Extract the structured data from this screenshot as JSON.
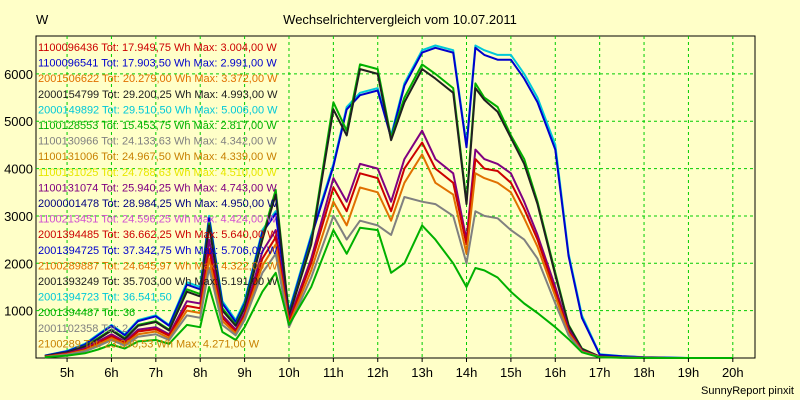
{
  "chart_data": {
    "type": "line",
    "title": "Wechselrichtervergleich vom 10.07.2011",
    "ylabel": "W",
    "xlabel": "",
    "ylim": [
      0,
      6800
    ],
    "xlim": [
      4.3,
      20.5
    ],
    "yticks": [
      1000,
      2000,
      3000,
      4000,
      5000,
      6000
    ],
    "xticks": [
      5,
      6,
      7,
      8,
      9,
      10,
      11,
      12,
      13,
      14,
      15,
      16,
      17,
      18,
      19,
      20
    ],
    "xtick_labels": [
      "5h",
      "6h",
      "7h",
      "8h",
      "9h",
      "10h",
      "11h",
      "12h",
      "13h",
      "14h",
      "15h",
      "16h",
      "17h",
      "18h",
      "19h",
      "20h"
    ],
    "grid": true,
    "legend_placement": "top-left",
    "footer": "SunnyReport pinxit",
    "legend_entries": [
      {
        "text": "1100096436 Tot: 17.949,75 Wh Max: 3.004,00 W",
        "color": "#cc0000"
      },
      {
        "text": "1100096541 Tot: 17.903,50 Wh Max: 2.991,00 W",
        "color": "#0000cc"
      },
      {
        "text": "2001506622 Tot: 20.279,00 Wh Max: 3.372,00 W",
        "color": "#e07000"
      },
      {
        "text": "2000154799 Tot: 29.200,25 Wh Max: 4.993,00 W",
        "color": "#202020"
      },
      {
        "text": "2000149892 Tot: 29.510,50 Wh Max: 5.006,00 W",
        "color": "#00c8d8"
      },
      {
        "text": "1100128553 Tot: 15.453,75 Wh Max: 2.817,00 W",
        "color": "#00b000"
      },
      {
        "text": "1100130966 Tot: 24.133,63 Wh Max: 4.342,00 W",
        "color": "#808080"
      },
      {
        "text": "1100131006 Tot: 24.967,50 Wh Max: 4.339,00 W",
        "color": "#c88000"
      },
      {
        "text": "1100131025 Tot: 24.788,63 Wh Max: 4.510,00 W",
        "color": "#e8e800"
      },
      {
        "text": "1100131074 Tot: 25.940,25 Wh Max: 4.743,00 W",
        "color": "#800080"
      },
      {
        "text": "2000001478 Tot: 28.984,25 Wh Max: 4.950,00 W",
        "color": "#000080"
      },
      {
        "text": "1100213451 Tot: 24.596,25 Wh Max: 4.424,00 W",
        "color": "#d050d0"
      },
      {
        "text": "2001394485 Tot: 36.662,25 Wh Max: 5.640,00 W",
        "color": "#cc0000"
      },
      {
        "text": "2001394725 Tot: 37.342,75 Wh Max: 5.706,00 W",
        "color": "#0000cc"
      },
      {
        "text": "2100289887 Tot: 24.645,97 Wh Max: 4.322,00 W",
        "color": "#e07000"
      },
      {
        "text": "2001393249 Tot: 35.703,00 Wh Max: 5.191,00 W",
        "color": "#202020"
      },
      {
        "text": "2001394723 Tot: 36.541,50",
        "color": "#00c8d8"
      },
      {
        "text": "2001394487 Tot: 36",
        "color": "#00b000"
      },
      {
        "text": "2001102358 Tot: 2",
        "color": "#808080"
      },
      {
        "text": "2100289 Tot: 23.390,53 Wh Max: 4.271,00 W",
        "color": "#c88000"
      }
    ],
    "series": [
      {
        "color": "#00c8d8",
        "x": [
          4.5,
          5,
          5.4,
          5.7,
          6,
          6.3,
          6.6,
          7,
          7.3,
          7.7,
          8,
          8.2,
          8.5,
          8.8,
          9,
          9.4,
          9.7,
          10,
          10.5,
          11,
          11.3,
          11.6,
          12,
          12.3,
          12.6,
          13,
          13.3,
          13.7,
          14,
          14.2,
          14.4,
          14.7,
          15,
          15.3,
          15.6,
          16,
          16.3,
          16.6,
          17,
          17.5,
          18,
          18.5,
          19,
          19.5,
          20
        ],
        "values": [
          50,
          150,
          300,
          500,
          700,
          500,
          800,
          900,
          700,
          1600,
          1500,
          3000,
          1200,
          800,
          1200,
          2700,
          3100,
          1000,
          2600,
          4100,
          5300,
          5600,
          5700,
          4700,
          5800,
          6500,
          6600,
          6500,
          4500,
          6600,
          6500,
          6400,
          6400,
          6000,
          5500,
          4500,
          2200,
          900,
          80,
          40,
          20,
          10,
          0,
          0,
          0
        ]
      },
      {
        "color": "#0000cc",
        "x": [
          4.5,
          5,
          5.4,
          5.7,
          6,
          6.3,
          6.6,
          7,
          7.3,
          7.7,
          8,
          8.2,
          8.5,
          8.8,
          9,
          9.4,
          9.7,
          10,
          10.5,
          11,
          11.3,
          11.6,
          12,
          12.3,
          12.6,
          13,
          13.3,
          13.7,
          14,
          14.2,
          14.4,
          14.7,
          15,
          15.3,
          15.6,
          16,
          16.3,
          16.6,
          17,
          17.5,
          18,
          18.5,
          19,
          19.5,
          20
        ],
        "values": [
          50,
          140,
          280,
          480,
          680,
          480,
          780,
          880,
          680,
          1550,
          1450,
          2950,
          1150,
          760,
          1150,
          2650,
          3050,
          950,
          2550,
          4050,
          5250,
          5550,
          5650,
          4650,
          5750,
          6450,
          6550,
          6450,
          4450,
          6550,
          6400,
          6300,
          6300,
          5900,
          5400,
          4400,
          2150,
          850,
          70,
          35,
          15,
          8,
          0,
          0,
          0
        ]
      },
      {
        "color": "#00b000",
        "x": [
          4.5,
          5,
          5.4,
          5.7,
          6,
          6.3,
          6.6,
          7,
          7.3,
          7.7,
          8,
          8.2,
          8.5,
          8.8,
          9,
          9.4,
          9.7,
          10,
          10.5,
          11,
          11.3,
          11.6,
          12,
          12.3,
          12.6,
          13,
          13.3,
          13.7,
          14,
          14.2,
          14.4,
          14.7,
          15,
          15.3,
          15.6,
          16,
          16.3,
          16.6,
          17,
          17.5,
          18,
          18.5,
          19,
          19.5,
          20
        ],
        "values": [
          40,
          120,
          250,
          420,
          600,
          420,
          700,
          780,
          600,
          1450,
          1350,
          2850,
          1050,
          700,
          1100,
          2550,
          3550,
          900,
          2450,
          5400,
          4800,
          6200,
          6100,
          4650,
          5500,
          6200,
          6000,
          5700,
          3300,
          5800,
          5500,
          5300,
          4700,
          4200,
          3300,
          1800,
          700,
          200,
          30,
          10,
          5,
          0,
          0,
          0,
          0
        ]
      },
      {
        "color": "#202020",
        "x": [
          4.5,
          5,
          5.4,
          5.7,
          6,
          6.3,
          6.6,
          7,
          7.3,
          7.7,
          8,
          8.2,
          8.5,
          8.8,
          9,
          9.4,
          9.7,
          10,
          10.5,
          11,
          11.3,
          11.6,
          12,
          12.3,
          12.6,
          13,
          13.3,
          13.7,
          14,
          14.2,
          14.4,
          14.7,
          15,
          15.3,
          15.6,
          16,
          16.3,
          16.6,
          17,
          17.5,
          18,
          18.5,
          19,
          19.5,
          20
        ],
        "values": [
          40,
          120,
          240,
          400,
          580,
          400,
          680,
          760,
          580,
          1400,
          1300,
          2800,
          1000,
          680,
          1050,
          2500,
          3450,
          880,
          2400,
          5250,
          4700,
          6100,
          6000,
          4600,
          5400,
          6100,
          5900,
          5600,
          3250,
          5700,
          5450,
          5200,
          4650,
          4100,
          3250,
          1750,
          680,
          190,
          30,
          10,
          5,
          0,
          0,
          0,
          0
        ]
      },
      {
        "color": "#800080",
        "x": [
          4.5,
          5,
          5.4,
          5.7,
          6,
          6.3,
          6.6,
          7,
          7.3,
          7.7,
          8,
          8.2,
          8.5,
          8.8,
          9,
          9.4,
          9.7,
          10,
          10.5,
          11,
          11.3,
          11.6,
          12,
          12.3,
          12.6,
          13,
          13.3,
          13.7,
          14,
          14.2,
          14.4,
          14.7,
          15,
          15.3,
          15.6,
          16,
          16.3,
          16.6,
          17,
          17.5,
          18,
          18.5,
          19,
          19.5,
          20
        ],
        "values": [
          30,
          100,
          200,
          350,
          500,
          350,
          600,
          650,
          500,
          1200,
          1150,
          2500,
          900,
          600,
          950,
          2250,
          2700,
          800,
          2100,
          3800,
          3300,
          4100,
          4000,
          3300,
          4200,
          4800,
          4200,
          3900,
          2500,
          4400,
          4200,
          4100,
          3900,
          3300,
          2600,
          1500,
          600,
          160,
          25,
          10,
          5,
          0,
          0,
          0,
          0
        ]
      },
      {
        "color": "#cc0000",
        "x": [
          4.5,
          5,
          5.4,
          5.7,
          6,
          6.3,
          6.6,
          7,
          7.3,
          7.7,
          8,
          8.2,
          8.5,
          8.8,
          9,
          9.4,
          9.7,
          10,
          10.5,
          11,
          11.3,
          11.6,
          12,
          12.3,
          12.6,
          13,
          13.3,
          13.7,
          14,
          14.2,
          14.4,
          14.7,
          15,
          15.3,
          15.6,
          16,
          16.3,
          16.6,
          17,
          17.5,
          18,
          18.5,
          19,
          19.5,
          20
        ],
        "values": [
          30,
          90,
          180,
          320,
          460,
          320,
          560,
          610,
          470,
          1100,
          1050,
          2300,
          850,
          560,
          900,
          2100,
          2550,
          760,
          2000,
          3600,
          3100,
          3900,
          3800,
          3100,
          4000,
          4550,
          4000,
          3700,
          2400,
          4200,
          4000,
          3950,
          3700,
          3150,
          2500,
          1400,
          560,
          150,
          25,
          10,
          5,
          0,
          0,
          0,
          0
        ]
      },
      {
        "color": "#e07000",
        "x": [
          4.5,
          5,
          5.4,
          5.7,
          6,
          6.3,
          6.6,
          7,
          7.3,
          7.7,
          8,
          8.2,
          8.5,
          8.8,
          9,
          9.4,
          9.7,
          10,
          10.5,
          11,
          11.3,
          11.6,
          12,
          12.3,
          12.6,
          13,
          13.3,
          13.7,
          14,
          14.2,
          14.4,
          14.7,
          15,
          15.3,
          15.6,
          16,
          16.3,
          16.6,
          17,
          17.5,
          18,
          18.5,
          19,
          19.5,
          20
        ],
        "values": [
          25,
          80,
          160,
          280,
          420,
          290,
          500,
          560,
          420,
          1000,
          950,
          2100,
          780,
          520,
          850,
          1950,
          2400,
          700,
          1850,
          3300,
          2800,
          3600,
          3500,
          2900,
          3700,
          4300,
          3700,
          3450,
          2200,
          3900,
          3800,
          3700,
          3500,
          2950,
          2350,
          1300,
          520,
          140,
          20,
          8,
          3,
          0,
          0,
          0,
          0
        ]
      },
      {
        "color": "#808080",
        "x": [
          4.5,
          5,
          5.4,
          5.7,
          6,
          6.3,
          6.6,
          7,
          7.3,
          7.7,
          8,
          8.2,
          8.5,
          8.8,
          9,
          9.4,
          9.7,
          10,
          10.5,
          11,
          11.3,
          11.6,
          12,
          12.3,
          12.6,
          13,
          13.3,
          13.7,
          14,
          14.2,
          14.4,
          14.7,
          15,
          15.3,
          15.6,
          16,
          16.3,
          16.6,
          17,
          17.5,
          18,
          18.5,
          19,
          19.5,
          20
        ],
        "values": [
          20,
          70,
          140,
          250,
          380,
          260,
          450,
          500,
          380,
          900,
          850,
          1900,
          700,
          480,
          800,
          1800,
          2200,
          650,
          1700,
          3000,
          2500,
          2900,
          2800,
          2600,
          3400,
          3300,
          3250,
          3000,
          2000,
          3100,
          3000,
          2950,
          2700,
          2500,
          2100,
          1150,
          480,
          130,
          20,
          8,
          3,
          0,
          0,
          0,
          0
        ]
      },
      {
        "color": "#00b000",
        "x": [
          4.5,
          5,
          5.4,
          5.7,
          6,
          6.3,
          6.6,
          7,
          7.3,
          7.7,
          8,
          8.2,
          8.5,
          8.8,
          9,
          9.4,
          9.7,
          10,
          10.5,
          11,
          11.3,
          11.6,
          12,
          12.3,
          12.6,
          13,
          13.3,
          13.7,
          14,
          14.2,
          14.4,
          14.7,
          15,
          15.3,
          15.6,
          16,
          16.3,
          16.6,
          17,
          17.5,
          18,
          18.5,
          19,
          19.5,
          20
        ],
        "values": [
          15,
          50,
          100,
          180,
          280,
          200,
          350,
          380,
          300,
          700,
          650,
          1500,
          550,
          380,
          650,
          1400,
          1800,
          700,
          1500,
          2700,
          2200,
          2750,
          2700,
          1800,
          2000,
          2800,
          2500,
          2000,
          1500,
          1900,
          1850,
          1700,
          1400,
          1150,
          950,
          650,
          400,
          120,
          15,
          5,
          0,
          0,
          0,
          0,
          0
        ]
      }
    ]
  }
}
